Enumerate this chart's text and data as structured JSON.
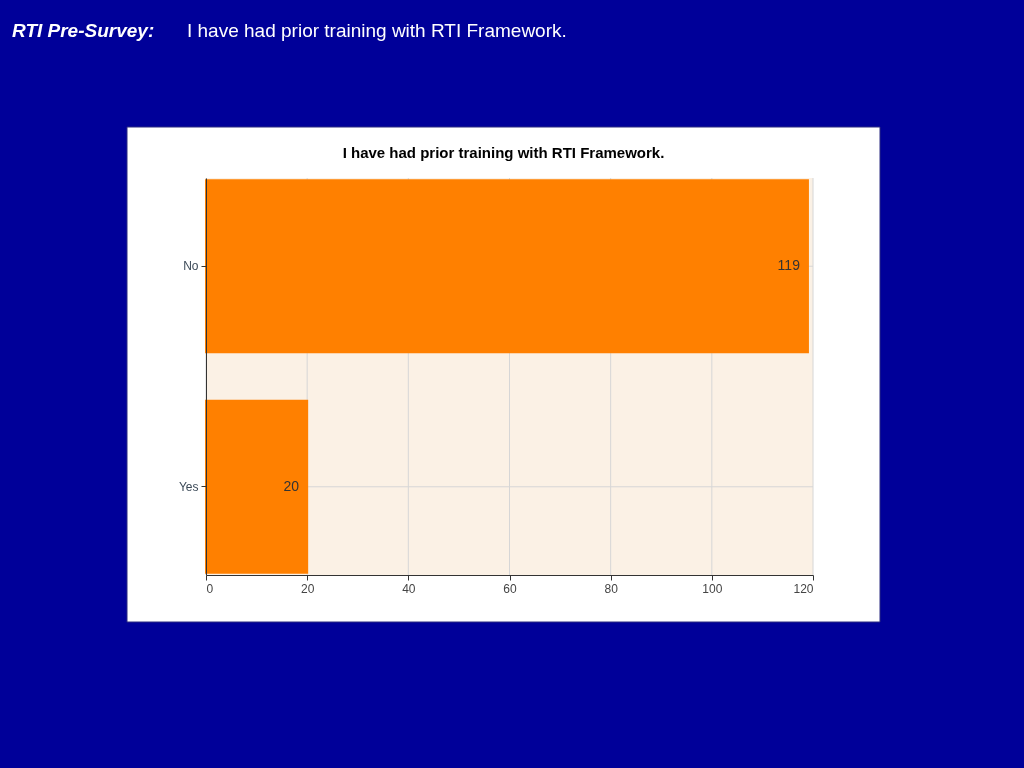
{
  "chart_data": {
    "type": "bar",
    "orientation": "horizontal",
    "title": "I have had prior training with RTI Framework.",
    "annotations": [
      "RTI Pre-Survey:",
      "I have had prior training with RTI Framework."
    ],
    "categories": [
      "No",
      "Yes"
    ],
    "values": [
      119,
      20
    ],
    "color": "#ff8000",
    "xlim": [
      0,
      120
    ],
    "xticks": [
      0,
      20,
      40,
      60,
      80,
      100,
      120
    ],
    "grid": true,
    "data_labels": true
  }
}
